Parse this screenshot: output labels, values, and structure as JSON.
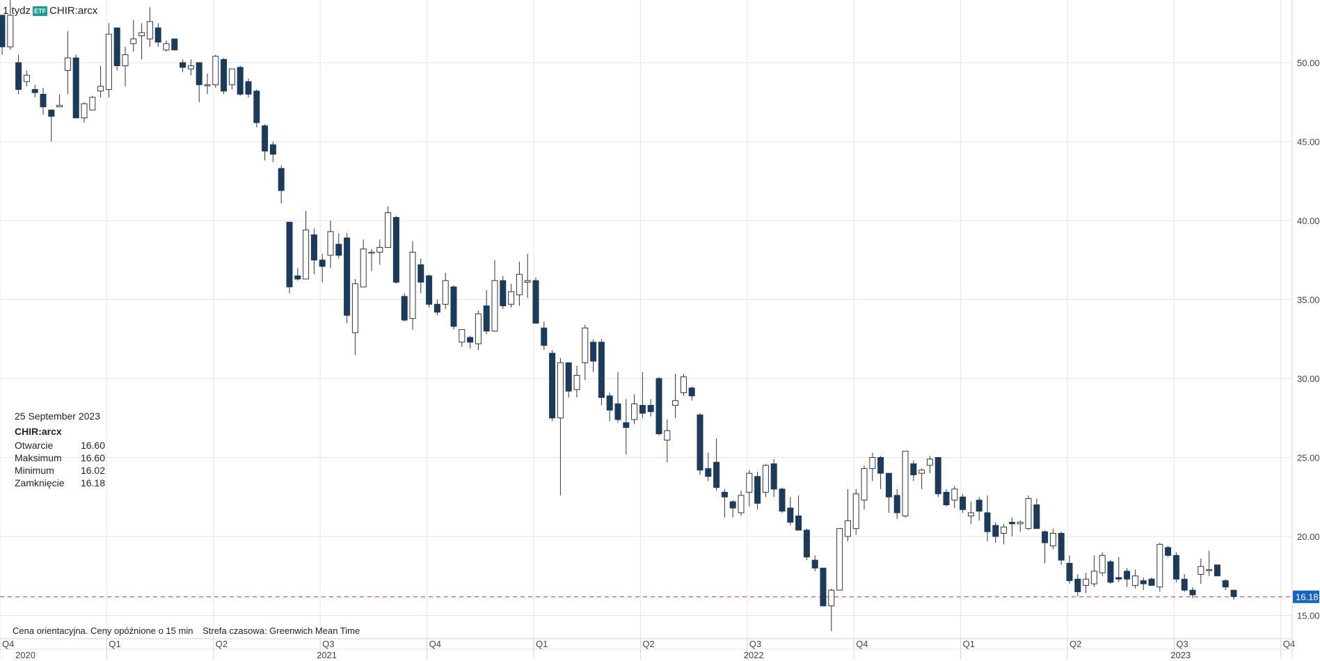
{
  "header": {
    "interval": "1 tydz",
    "badge": "ETF",
    "symbol": "CHIR:arcx"
  },
  "tooltip": {
    "date": "25 September 2023",
    "symbol": "CHIR:arcx",
    "rows": [
      {
        "label": "Otwarcie",
        "value": "16.60"
      },
      {
        "label": "Maksimum",
        "value": "16.60"
      },
      {
        "label": "Minimum",
        "value": "16.02"
      },
      {
        "label": "Zamknięcie",
        "value": "16.18"
      }
    ]
  },
  "footnote": {
    "price_note": "Cena orientacyjna. Ceny opóźnione o 15 min",
    "timezone": "Strefa czasowa: Greenwich Mean Time"
  },
  "colors": {
    "down": "#1b3a5c",
    "up": "#ffffff",
    "wick": "#333333",
    "grid": "#e3e6ea",
    "last_price_line": "#e05555",
    "last_price_bg": "#1565c0"
  },
  "chart_data": {
    "type": "candlestick",
    "series_name": "CHIR:arcx",
    "interval": "1 tydz",
    "y_ticks": [
      "50.00",
      "45.00",
      "40.00",
      "35.00",
      "30.00",
      "25.00",
      "20.00",
      "15.00"
    ],
    "ylim": [
      13.5,
      54.5
    ],
    "last_price": "16.18",
    "x_quarter_ticks": [
      {
        "label": "Q4",
        "x": 0
      },
      {
        "label": "Q1",
        "x": 13
      },
      {
        "label": "Q2",
        "x": 26
      },
      {
        "label": "Q3",
        "x": 39
      },
      {
        "label": "Q4",
        "x": 52
      },
      {
        "label": "Q1",
        "x": 65
      },
      {
        "label": "Q2",
        "x": 78
      },
      {
        "label": "Q3",
        "x": 91
      },
      {
        "label": "Q4",
        "x": 104
      },
      {
        "label": "Q1",
        "x": 117
      },
      {
        "label": "Q2",
        "x": 130
      },
      {
        "label": "Q3",
        "x": 143
      },
      {
        "label": "Q4",
        "x": 156
      }
    ],
    "x_year_ticks": [
      {
        "label": "2020",
        "x": 0
      },
      {
        "label": "2021",
        "x": 39.5
      },
      {
        "label": "2022",
        "x": 91.5
      },
      {
        "label": "2023",
        "x": 143.5
      }
    ],
    "tooltip_date": "25 September 2023",
    "candles": [
      {
        "o": 53.0,
        "h": 53.0,
        "l": 50.5,
        "c": 51.0
      },
      {
        "o": 51.0,
        "h": 54.0,
        "l": 50.8,
        "c": 53.0
      },
      {
        "o": 50.0,
        "h": 50.5,
        "l": 48.0,
        "c": 48.3
      },
      {
        "o": 48.8,
        "h": 49.5,
        "l": 48.5,
        "c": 49.2
      },
      {
        "o": 48.3,
        "h": 48.6,
        "l": 47.8,
        "c": 48.1
      },
      {
        "o": 48.0,
        "h": 48.4,
        "l": 46.7,
        "c": 47.2
      },
      {
        "o": 47.0,
        "h": 47.0,
        "l": 45.0,
        "c": 46.6
      },
      {
        "o": 47.2,
        "h": 48.0,
        "l": 47.2,
        "c": 47.3
      },
      {
        "o": 49.5,
        "h": 52.0,
        "l": 48.0,
        "c": 50.3
      },
      {
        "o": 50.3,
        "h": 50.5,
        "l": 46.5,
        "c": 46.5
      },
      {
        "o": 46.5,
        "h": 47.5,
        "l": 46.2,
        "c": 47.4
      },
      {
        "o": 47.0,
        "h": 47.9,
        "l": 47.0,
        "c": 47.8
      },
      {
        "o": 48.2,
        "h": 49.8,
        "l": 47.8,
        "c": 48.5
      },
      {
        "o": 48.3,
        "h": 52.5,
        "l": 47.8,
        "c": 51.8
      },
      {
        "o": 52.2,
        "h": 52.2,
        "l": 49.5,
        "c": 49.8
      },
      {
        "o": 49.8,
        "h": 51.0,
        "l": 48.5,
        "c": 50.5
      },
      {
        "o": 51.2,
        "h": 52.7,
        "l": 50.7,
        "c": 51.5
      },
      {
        "o": 51.7,
        "h": 52.5,
        "l": 50.2,
        "c": 51.9
      },
      {
        "o": 51.5,
        "h": 53.5,
        "l": 51.0,
        "c": 52.6
      },
      {
        "o": 52.2,
        "h": 52.5,
        "l": 51.0,
        "c": 51.3
      },
      {
        "o": 50.8,
        "h": 51.4,
        "l": 50.7,
        "c": 51.2
      },
      {
        "o": 51.5,
        "h": 51.5,
        "l": 50.8,
        "c": 50.8
      },
      {
        "o": 50.0,
        "h": 50.2,
        "l": 49.4,
        "c": 49.7
      },
      {
        "o": 49.6,
        "h": 50.2,
        "l": 49.2,
        "c": 49.8
      },
      {
        "o": 50.0,
        "h": 50.0,
        "l": 47.5,
        "c": 48.6
      },
      {
        "o": 48.6,
        "h": 49.3,
        "l": 48.0,
        "c": 48.6
      },
      {
        "o": 48.6,
        "h": 50.5,
        "l": 48.4,
        "c": 50.4
      },
      {
        "o": 50.2,
        "h": 50.3,
        "l": 48.0,
        "c": 48.2
      },
      {
        "o": 48.6,
        "h": 49.5,
        "l": 48.3,
        "c": 49.6
      },
      {
        "o": 49.7,
        "h": 49.8,
        "l": 47.9,
        "c": 48.0
      },
      {
        "o": 48.8,
        "h": 49.0,
        "l": 47.8,
        "c": 48.0
      },
      {
        "o": 48.2,
        "h": 48.3,
        "l": 45.9,
        "c": 46.2
      },
      {
        "o": 46.0,
        "h": 46.1,
        "l": 43.8,
        "c": 44.4
      },
      {
        "o": 44.8,
        "h": 45.0,
        "l": 43.7,
        "c": 44.2
      },
      {
        "o": 43.3,
        "h": 43.5,
        "l": 41.1,
        "c": 41.9
      },
      {
        "o": 39.9,
        "h": 39.9,
        "l": 35.4,
        "c": 35.8
      },
      {
        "o": 36.5,
        "h": 37.0,
        "l": 36.2,
        "c": 36.3
      },
      {
        "o": 36.3,
        "h": 40.6,
        "l": 36.3,
        "c": 39.4
      },
      {
        "o": 39.1,
        "h": 39.5,
        "l": 36.6,
        "c": 37.5
      },
      {
        "o": 37.5,
        "h": 37.9,
        "l": 36.1,
        "c": 37.1
      },
      {
        "o": 37.8,
        "h": 40.0,
        "l": 37.0,
        "c": 39.3
      },
      {
        "o": 38.5,
        "h": 39.2,
        "l": 37.6,
        "c": 37.8
      },
      {
        "o": 38.9,
        "h": 39.2,
        "l": 33.5,
        "c": 34.0
      },
      {
        "o": 32.9,
        "h": 36.3,
        "l": 31.5,
        "c": 36.0
      },
      {
        "o": 35.8,
        "h": 38.8,
        "l": 35.8,
        "c": 38.2
      },
      {
        "o": 38.0,
        "h": 38.2,
        "l": 36.8,
        "c": 38.0
      },
      {
        "o": 38.0,
        "h": 38.8,
        "l": 37.2,
        "c": 38.3
      },
      {
        "o": 38.3,
        "h": 40.9,
        "l": 38.3,
        "c": 40.5
      },
      {
        "o": 40.2,
        "h": 40.3,
        "l": 36.0,
        "c": 36.1
      },
      {
        "o": 35.2,
        "h": 35.4,
        "l": 33.6,
        "c": 33.7
      },
      {
        "o": 33.8,
        "h": 38.7,
        "l": 33.1,
        "c": 38.0
      },
      {
        "o": 37.2,
        "h": 37.6,
        "l": 35.4,
        "c": 36.1
      },
      {
        "o": 36.5,
        "h": 36.6,
        "l": 34.5,
        "c": 34.7
      },
      {
        "o": 34.7,
        "h": 35.0,
        "l": 34.0,
        "c": 34.2
      },
      {
        "o": 34.7,
        "h": 36.7,
        "l": 34.4,
        "c": 36.2
      },
      {
        "o": 35.8,
        "h": 35.9,
        "l": 33.1,
        "c": 33.3
      },
      {
        "o": 32.3,
        "h": 33.1,
        "l": 32.0,
        "c": 33.1
      },
      {
        "o": 32.6,
        "h": 32.7,
        "l": 31.9,
        "c": 32.3
      },
      {
        "o": 32.2,
        "h": 34.3,
        "l": 31.8,
        "c": 34.1
      },
      {
        "o": 34.6,
        "h": 35.6,
        "l": 32.8,
        "c": 33.0
      },
      {
        "o": 33.0,
        "h": 37.5,
        "l": 33.0,
        "c": 36.2
      },
      {
        "o": 36.2,
        "h": 36.5,
        "l": 34.4,
        "c": 34.6
      },
      {
        "o": 34.7,
        "h": 36.0,
        "l": 34.5,
        "c": 35.5
      },
      {
        "o": 35.3,
        "h": 37.4,
        "l": 34.6,
        "c": 36.6
      },
      {
        "o": 36.1,
        "h": 37.9,
        "l": 35.1,
        "c": 36.2
      },
      {
        "o": 36.2,
        "h": 36.4,
        "l": 33.5,
        "c": 33.5
      },
      {
        "o": 33.2,
        "h": 33.6,
        "l": 31.8,
        "c": 32.1
      },
      {
        "o": 31.6,
        "h": 31.8,
        "l": 27.3,
        "c": 27.5
      },
      {
        "o": 27.5,
        "h": 31.3,
        "l": 22.6,
        "c": 31.0
      },
      {
        "o": 31.0,
        "h": 31.0,
        "l": 28.8,
        "c": 29.2
      },
      {
        "o": 29.3,
        "h": 30.8,
        "l": 28.8,
        "c": 30.2
      },
      {
        "o": 31.0,
        "h": 33.4,
        "l": 29.9,
        "c": 33.2
      },
      {
        "o": 32.3,
        "h": 32.5,
        "l": 30.4,
        "c": 31.1
      },
      {
        "o": 32.3,
        "h": 32.5,
        "l": 28.3,
        "c": 28.8
      },
      {
        "o": 28.9,
        "h": 29.1,
        "l": 27.3,
        "c": 28.0
      },
      {
        "o": 28.4,
        "h": 30.4,
        "l": 27.2,
        "c": 27.4
      },
      {
        "o": 27.2,
        "h": 28.7,
        "l": 25.2,
        "c": 26.9
      },
      {
        "o": 27.4,
        "h": 29.0,
        "l": 27.1,
        "c": 28.4
      },
      {
        "o": 28.3,
        "h": 30.4,
        "l": 27.5,
        "c": 27.8
      },
      {
        "o": 28.3,
        "h": 28.7,
        "l": 27.6,
        "c": 27.9
      },
      {
        "o": 30.0,
        "h": 30.1,
        "l": 26.4,
        "c": 26.5
      },
      {
        "o": 26.1,
        "h": 27.4,
        "l": 24.7,
        "c": 26.7
      },
      {
        "o": 28.3,
        "h": 30.3,
        "l": 27.5,
        "c": 28.6
      },
      {
        "o": 29.1,
        "h": 30.3,
        "l": 28.9,
        "c": 30.1
      },
      {
        "o": 29.4,
        "h": 29.5,
        "l": 28.6,
        "c": 28.9
      },
      {
        "o": 27.7,
        "h": 27.8,
        "l": 23.9,
        "c": 24.2
      },
      {
        "o": 24.3,
        "h": 25.3,
        "l": 23.5,
        "c": 23.8
      },
      {
        "o": 24.7,
        "h": 26.2,
        "l": 22.9,
        "c": 23.1
      },
      {
        "o": 22.8,
        "h": 23.0,
        "l": 21.2,
        "c": 22.5
      },
      {
        "o": 22.2,
        "h": 22.3,
        "l": 21.2,
        "c": 21.8
      },
      {
        "o": 21.5,
        "h": 22.9,
        "l": 21.3,
        "c": 22.6
      },
      {
        "o": 22.8,
        "h": 24.2,
        "l": 21.9,
        "c": 24.0
      },
      {
        "o": 23.8,
        "h": 24.1,
        "l": 21.7,
        "c": 22.1
      },
      {
        "o": 22.8,
        "h": 24.6,
        "l": 22.5,
        "c": 24.5
      },
      {
        "o": 24.6,
        "h": 24.9,
        "l": 22.5,
        "c": 23.0
      },
      {
        "o": 23.0,
        "h": 23.1,
        "l": 21.5,
        "c": 21.6
      },
      {
        "o": 21.8,
        "h": 22.5,
        "l": 20.7,
        "c": 20.9
      },
      {
        "o": 21.3,
        "h": 22.6,
        "l": 20.4,
        "c": 20.4
      },
      {
        "o": 20.4,
        "h": 20.5,
        "l": 18.5,
        "c": 18.7
      },
      {
        "o": 18.5,
        "h": 18.8,
        "l": 17.8,
        "c": 18.0
      },
      {
        "o": 18.0,
        "h": 18.0,
        "l": 15.6,
        "c": 15.6
      },
      {
        "o": 15.6,
        "h": 16.7,
        "l": 14.0,
        "c": 16.6
      },
      {
        "o": 16.6,
        "h": 20.5,
        "l": 16.6,
        "c": 20.5
      },
      {
        "o": 20.0,
        "h": 23.0,
        "l": 19.7,
        "c": 21.0
      },
      {
        "o": 20.5,
        "h": 23.0,
        "l": 20.1,
        "c": 22.7
      },
      {
        "o": 22.3,
        "h": 24.5,
        "l": 21.7,
        "c": 24.3
      },
      {
        "o": 24.3,
        "h": 25.3,
        "l": 23.5,
        "c": 25.0
      },
      {
        "o": 25.0,
        "h": 25.1,
        "l": 23.0,
        "c": 24.0
      },
      {
        "o": 24.0,
        "h": 24.0,
        "l": 21.5,
        "c": 22.5
      },
      {
        "o": 22.6,
        "h": 23.0,
        "l": 21.1,
        "c": 21.5
      },
      {
        "o": 21.3,
        "h": 25.4,
        "l": 21.2,
        "c": 25.4
      },
      {
        "o": 24.6,
        "h": 24.8,
        "l": 23.5,
        "c": 23.9
      },
      {
        "o": 24.0,
        "h": 24.3,
        "l": 23.0,
        "c": 24.2
      },
      {
        "o": 24.5,
        "h": 25.1,
        "l": 24.0,
        "c": 24.9
      },
      {
        "o": 25.0,
        "h": 25.0,
        "l": 22.5,
        "c": 22.7
      },
      {
        "o": 22.8,
        "h": 23.0,
        "l": 21.9,
        "c": 22.0
      },
      {
        "o": 22.3,
        "h": 23.2,
        "l": 21.8,
        "c": 23.0
      },
      {
        "o": 22.5,
        "h": 22.7,
        "l": 21.5,
        "c": 21.7
      },
      {
        "o": 21.3,
        "h": 22.2,
        "l": 20.8,
        "c": 21.5
      },
      {
        "o": 22.3,
        "h": 22.5,
        "l": 21.0,
        "c": 21.6
      },
      {
        "o": 21.5,
        "h": 22.6,
        "l": 19.7,
        "c": 20.3
      },
      {
        "o": 20.7,
        "h": 20.9,
        "l": 19.6,
        "c": 20.0
      },
      {
        "o": 20.2,
        "h": 20.8,
        "l": 19.5,
        "c": 20.6
      },
      {
        "o": 20.9,
        "h": 21.2,
        "l": 20.0,
        "c": 20.8
      },
      {
        "o": 20.8,
        "h": 21.0,
        "l": 20.3,
        "c": 20.9
      },
      {
        "o": 20.5,
        "h": 22.6,
        "l": 20.4,
        "c": 22.4
      },
      {
        "o": 22.0,
        "h": 22.4,
        "l": 20.5,
        "c": 20.5
      },
      {
        "o": 20.3,
        "h": 20.4,
        "l": 18.3,
        "c": 19.6
      },
      {
        "o": 19.4,
        "h": 20.5,
        "l": 19.2,
        "c": 20.2
      },
      {
        "o": 20.2,
        "h": 20.3,
        "l": 18.2,
        "c": 18.5
      },
      {
        "o": 18.3,
        "h": 18.8,
        "l": 17.0,
        "c": 17.2
      },
      {
        "o": 17.3,
        "h": 17.6,
        "l": 16.2,
        "c": 16.5
      },
      {
        "o": 16.9,
        "h": 17.7,
        "l": 16.4,
        "c": 17.3
      },
      {
        "o": 17.0,
        "h": 18.8,
        "l": 16.8,
        "c": 17.8
      },
      {
        "o": 17.7,
        "h": 19.0,
        "l": 17.5,
        "c": 18.8
      },
      {
        "o": 18.4,
        "h": 18.5,
        "l": 17.0,
        "c": 17.1
      },
      {
        "o": 17.4,
        "h": 18.7,
        "l": 17.1,
        "c": 17.3
      },
      {
        "o": 17.8,
        "h": 18.0,
        "l": 16.8,
        "c": 17.3
      },
      {
        "o": 16.9,
        "h": 17.9,
        "l": 16.7,
        "c": 17.5
      },
      {
        "o": 17.2,
        "h": 17.4,
        "l": 16.6,
        "c": 17.0
      },
      {
        "o": 17.3,
        "h": 17.4,
        "l": 16.9,
        "c": 16.9
      },
      {
        "o": 16.8,
        "h": 19.6,
        "l": 16.5,
        "c": 19.5
      },
      {
        "o": 19.3,
        "h": 19.4,
        "l": 18.7,
        "c": 18.8
      },
      {
        "o": 18.8,
        "h": 19.0,
        "l": 17.1,
        "c": 17.3
      },
      {
        "o": 17.3,
        "h": 17.6,
        "l": 16.5,
        "c": 16.6
      },
      {
        "o": 16.6,
        "h": 16.8,
        "l": 16.1,
        "c": 16.3
      },
      {
        "o": 17.6,
        "h": 18.6,
        "l": 17.0,
        "c": 18.1
      },
      {
        "o": 17.9,
        "h": 19.1,
        "l": 17.5,
        "c": 17.9
      },
      {
        "o": 18.2,
        "h": 18.2,
        "l": 17.5,
        "c": 17.5
      },
      {
        "o": 17.2,
        "h": 17.3,
        "l": 16.6,
        "c": 16.8
      },
      {
        "o": 16.6,
        "h": 16.6,
        "l": 16.0,
        "c": 16.2
      }
    ]
  }
}
